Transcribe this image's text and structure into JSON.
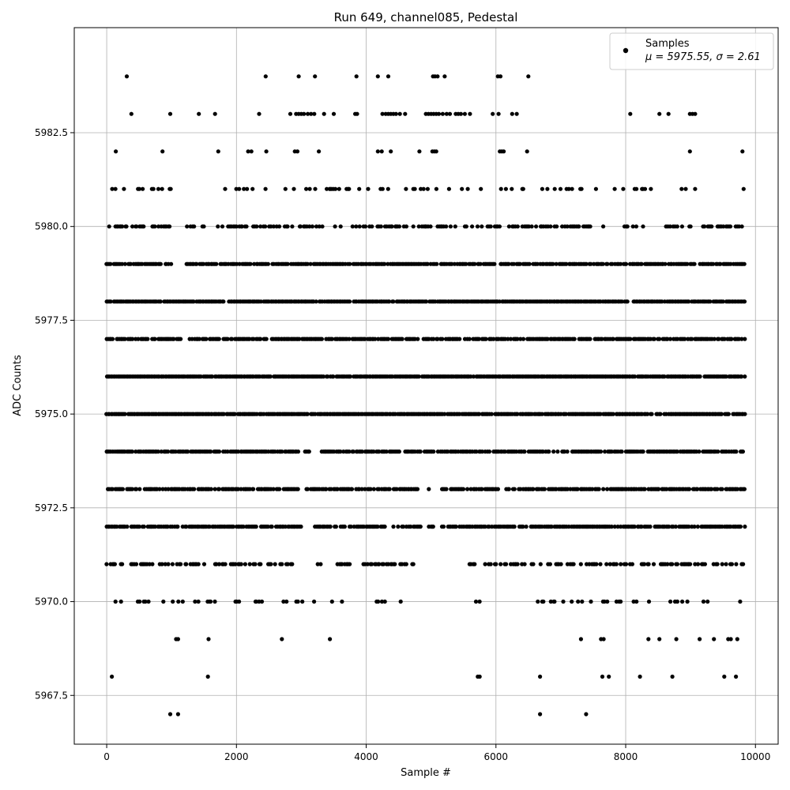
{
  "chart_data": {
    "type": "scatter",
    "title": "Run 649, channel085, Pedestal",
    "xlabel": "Sample #",
    "ylabel": "ADC Counts",
    "xlim": [
      -500,
      10350
    ],
    "ylim": [
      5966.2,
      5985.3
    ],
    "xticks": [
      0,
      2000,
      4000,
      6000,
      8000,
      10000
    ],
    "xtick_labels": [
      "0",
      "2000",
      "4000",
      "6000",
      "8000",
      "10000"
    ],
    "yticks": [
      5967.5,
      5970.0,
      5972.5,
      5975.0,
      5977.5,
      5980.0,
      5982.5
    ],
    "ytick_labels": [
      "5967.5",
      "5970.0",
      "5972.5",
      "5975.0",
      "5977.5",
      "5980.0",
      "5982.5"
    ],
    "grid": true,
    "legend_position": "top-right",
    "color": "#000000",
    "series": [
      {
        "name": "Samples",
        "label_line2": "μ = 5975.55, σ = 2.61",
        "n_samples": 9850,
        "x_range": [
          0,
          9850
        ],
        "levels": [
          {
            "y": 5967,
            "x": [
              980,
              1100,
              6680,
              7390
            ]
          },
          {
            "y": 5968,
            "x": [
              80,
              1560,
              5720,
              5750,
              6680,
              7640,
              7740,
              8220,
              8720,
              9520,
              9700
            ]
          },
          {
            "y": 5969,
            "x": [
              1070,
              1100,
              1570,
              2700,
              3440,
              7310,
              7620,
              7660,
              8350,
              8520,
              8780,
              9140,
              9360,
              9580,
              9620,
              9720
            ]
          },
          {
            "y": 5970,
            "density": "sparse",
            "gaps": [
              [
                3200,
                3450
              ],
              [
                3750,
                4000
              ],
              [
                4600,
                5100
              ],
              [
                5200,
                5680
              ],
              [
                5800,
                6450
              ]
            ]
          },
          {
            "y": 5971,
            "density": "medium",
            "gaps": [
              [
                2950,
                3250
              ],
              [
                3350,
                3500
              ],
              [
                3800,
                3950
              ],
              [
                4750,
                5150
              ],
              [
                5300,
                5550
              ]
            ]
          },
          {
            "y": 5972,
            "density": "dense",
            "gaps": [
              [
                3000,
                3200
              ],
              [
                3550,
                3600
              ],
              [
                4300,
                4400
              ],
              [
                4850,
                4950
              ],
              [
                5050,
                5150
              ]
            ]
          },
          {
            "y": 5973,
            "density": "dense",
            "gaps": [
              [
                2970,
                3060
              ],
              [
                4800,
                4950
              ],
              [
                5000,
                5150
              ],
              [
                6050,
                6150
              ]
            ]
          },
          {
            "y": 5974,
            "density": "dense",
            "gaps": [
              [
                2950,
                3050
              ],
              [
                3150,
                3300
              ],
              [
                5900,
                5950
              ]
            ]
          },
          {
            "y": 5975,
            "density": "full",
            "gaps": []
          },
          {
            "y": 5976,
            "density": "full",
            "gaps": []
          },
          {
            "y": 5977,
            "density": "dense",
            "gaps": [
              [
                1150,
                1250
              ]
            ]
          },
          {
            "y": 5978,
            "density": "full",
            "gaps": []
          },
          {
            "y": 5979,
            "density": "dense",
            "gaps": [
              [
                1050,
                1200
              ],
              [
                6000,
                6050
              ]
            ]
          },
          {
            "y": 5980,
            "density": "medium",
            "gaps": [
              [
                1000,
                1200
              ],
              [
                1500,
                1700
              ],
              [
                7700,
                7950
              ],
              [
                8300,
                8600
              ]
            ]
          },
          {
            "y": 5981,
            "density": "sparse",
            "gaps": [
              [
                1250,
                1700
              ],
              [
                2500,
                2700
              ],
              [
                7600,
                7700
              ],
              [
                8400,
                8850
              ],
              [
                9100,
                9750
              ]
            ]
          },
          {
            "y": 5982,
            "x": [
              140,
              860,
              1720,
              2180,
              2230,
              2460,
              2900,
              2940,
              3270,
              4180,
              4240,
              4380,
              4820,
              5020,
              5050,
              5080,
              6060,
              6090,
              6120,
              6480,
              8990,
              9800
            ]
          },
          {
            "y": 5983,
            "x": [
              380,
              980,
              1420,
              1670,
              2350,
              2830,
              2920,
              2960,
              3000,
              3040,
              3100,
              3150,
              3200,
              3350,
              3500,
              3830,
              3860,
              4250,
              4300,
              4340,
              4380,
              4420,
              4460,
              4520,
              4600,
              4920,
              4960,
              5000,
              5040,
              5080,
              5120,
              5180,
              5240,
              5290,
              5380,
              5420,
              5460,
              5520,
              5600,
              5950,
              6040,
              6250,
              6320,
              8070,
              8520,
              8660,
              8990,
              9030,
              9070
            ]
          },
          {
            "y": 5984,
            "x": [
              310,
              2450,
              2960,
              3210,
              3850,
              4180,
              4340,
              5030,
              5060,
              5100,
              5210,
              6030,
              6070,
              6500
            ]
          }
        ]
      }
    ]
  }
}
